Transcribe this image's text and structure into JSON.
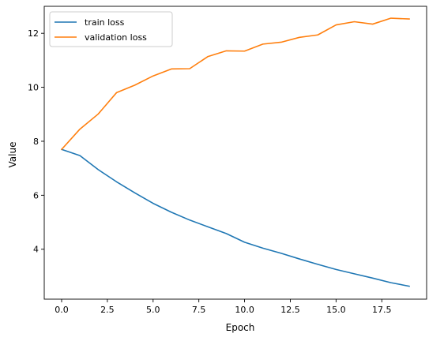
{
  "chart_data": {
    "type": "line",
    "title": "",
    "xlabel": "Epoch",
    "ylabel": "Value",
    "xlim": [
      -0.95,
      19.95
    ],
    "ylim": [
      2.15,
      13.0
    ],
    "x_ticks": [
      0.0,
      2.5,
      5.0,
      7.5,
      10.0,
      12.5,
      15.0,
      17.5
    ],
    "x_tick_labels": [
      "0.0",
      "2.5",
      "5.0",
      "7.5",
      "10.0",
      "12.5",
      "15.0",
      "17.5"
    ],
    "y_ticks": [
      4,
      6,
      8,
      10,
      12
    ],
    "y_tick_labels": [
      "4",
      "6",
      "8",
      "10",
      "12"
    ],
    "grid": false,
    "legend_position": "top-left",
    "x": [
      0,
      1,
      2,
      3,
      4,
      5,
      6,
      7,
      8,
      9,
      10,
      11,
      12,
      13,
      14,
      15,
      16,
      17,
      18,
      19
    ],
    "series": [
      {
        "name": "train loss",
        "color": "#1f77b4",
        "values": [
          7.7,
          7.47,
          6.95,
          6.5,
          6.09,
          5.7,
          5.37,
          5.08,
          4.83,
          4.58,
          4.26,
          4.04,
          3.85,
          3.64,
          3.44,
          3.25,
          3.09,
          2.93,
          2.76,
          2.63
        ]
      },
      {
        "name": "validation loss",
        "color": "#ff7f0e",
        "values": [
          7.7,
          8.45,
          9.01,
          9.8,
          10.08,
          10.42,
          10.68,
          10.69,
          11.14,
          11.35,
          11.34,
          11.6,
          11.67,
          11.85,
          11.94,
          12.31,
          12.43,
          12.34,
          12.56,
          12.53
        ]
      }
    ]
  }
}
